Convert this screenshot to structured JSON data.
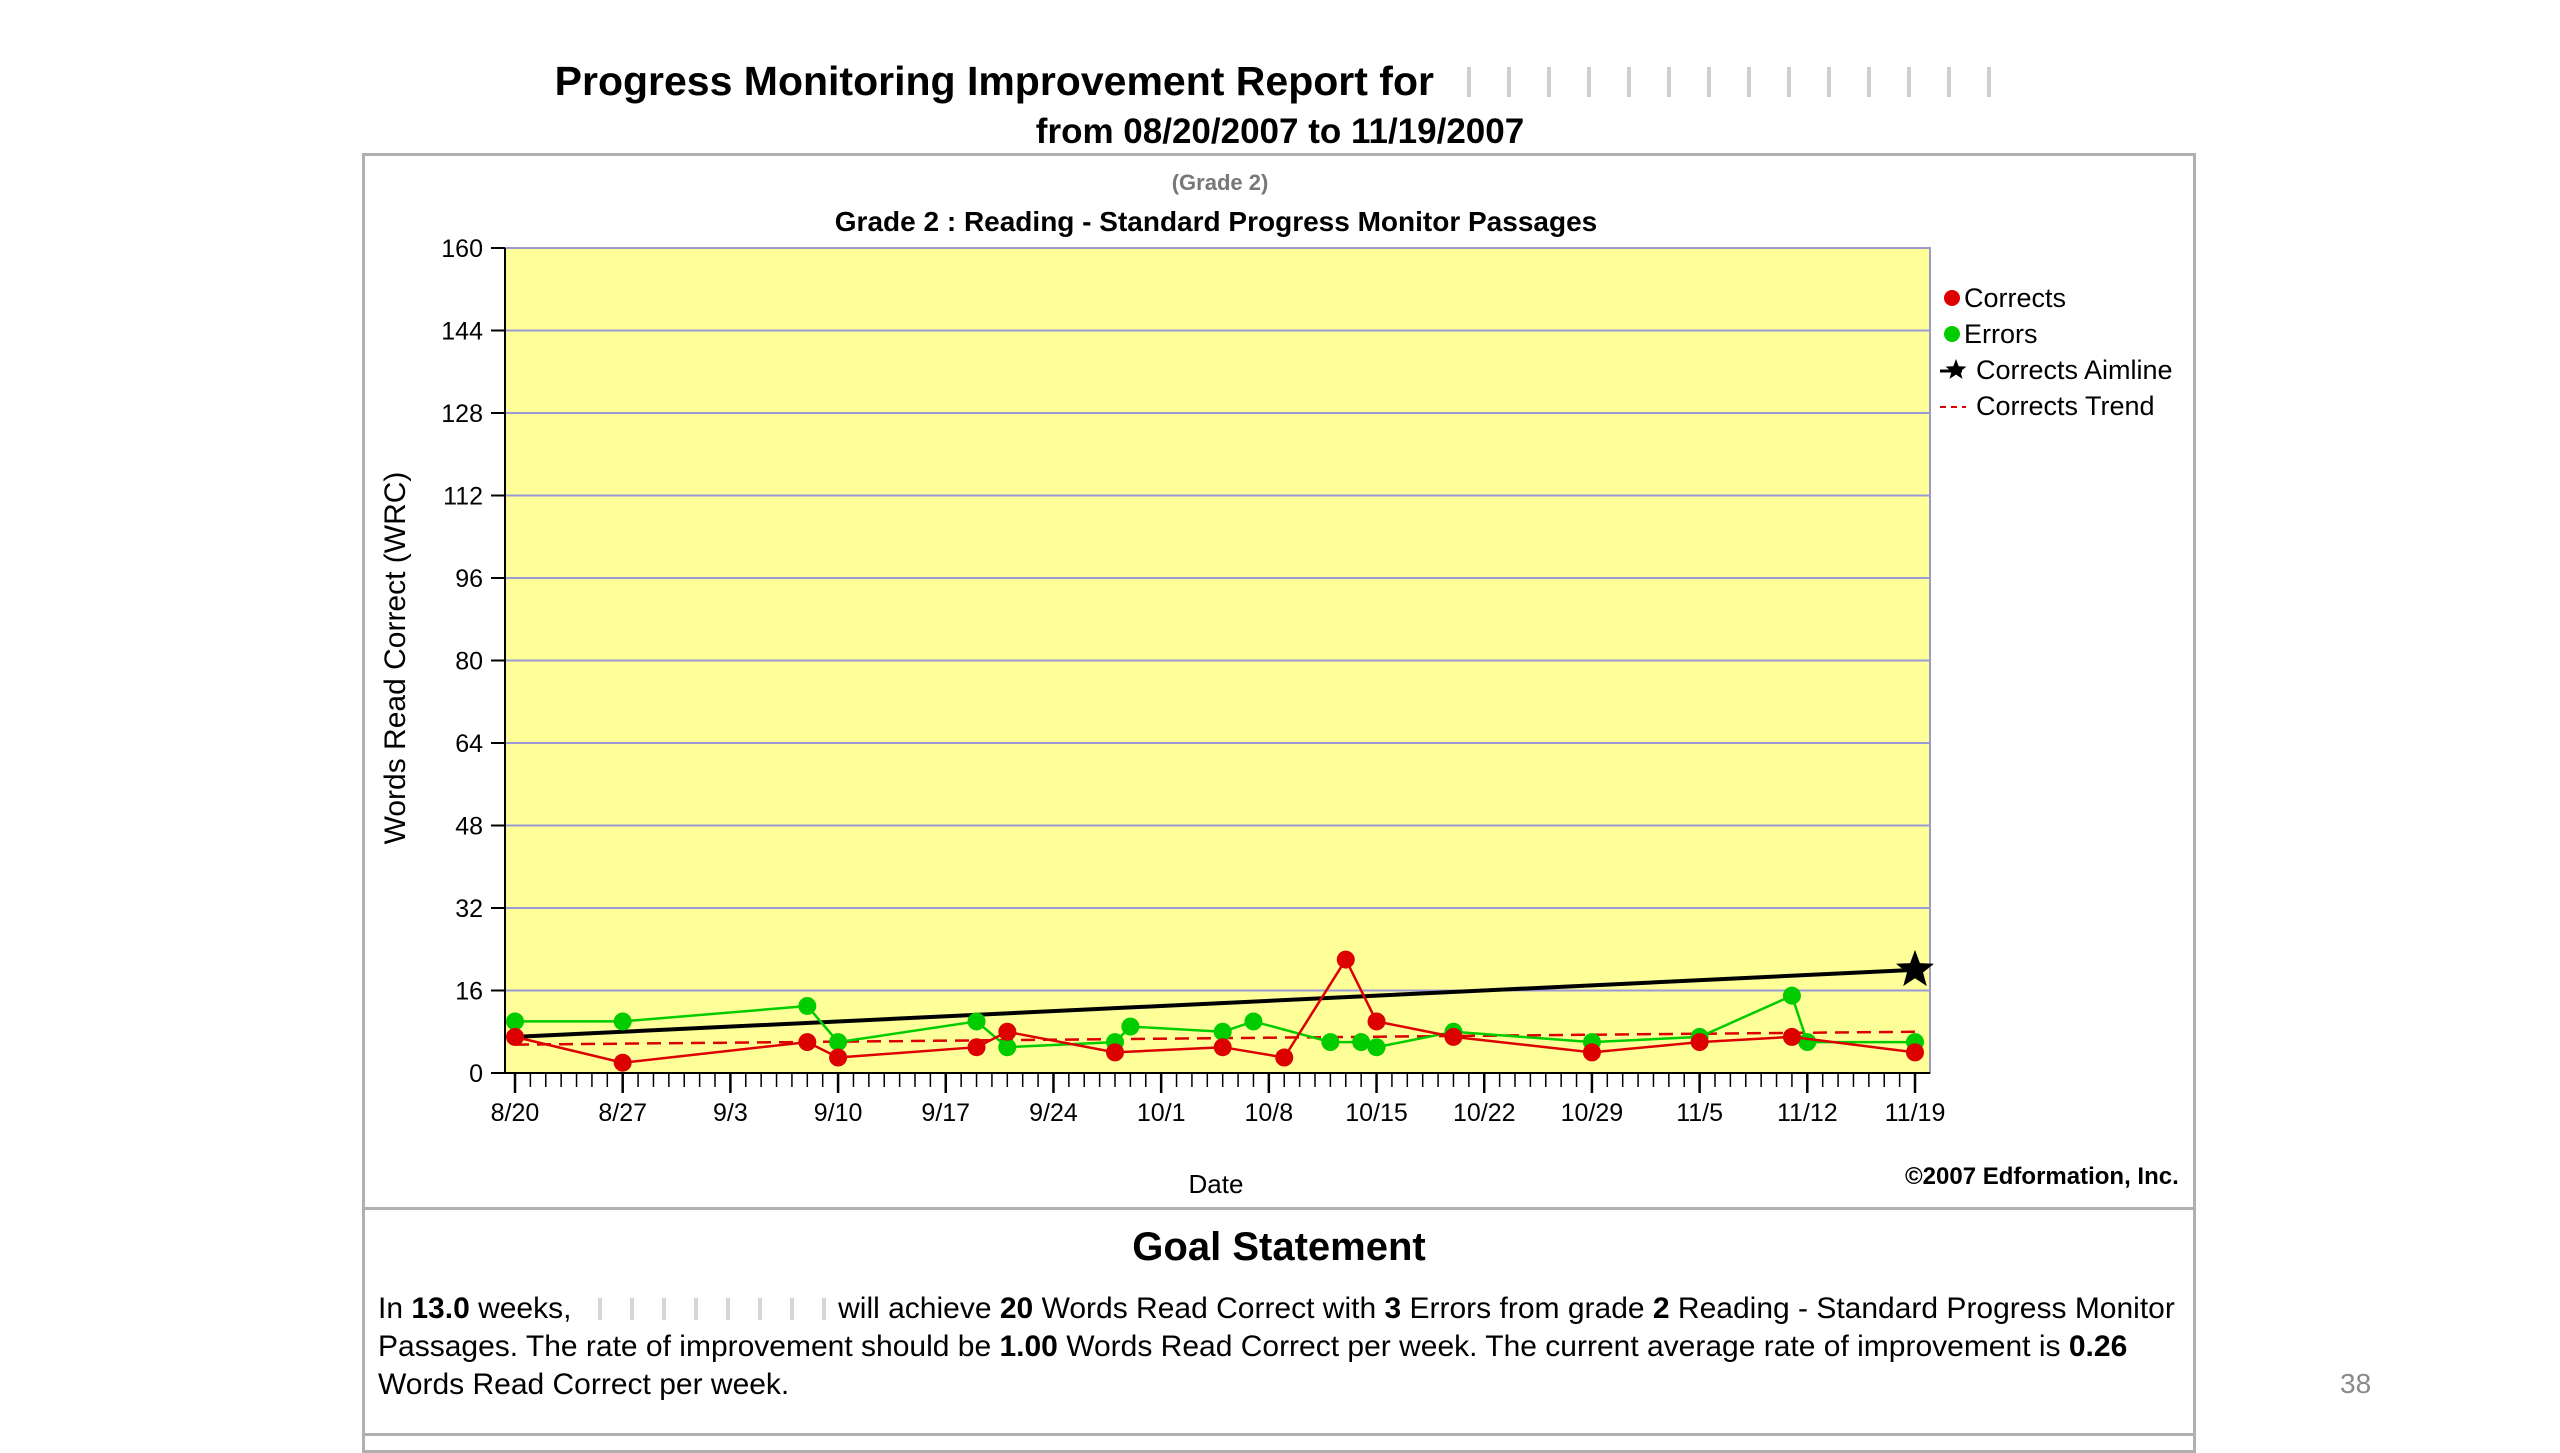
{
  "header": {
    "title": "Progress Monitoring Improvement Report for",
    "date_range": "from 08/20/2007 to 11/19/2007"
  },
  "chart_data": {
    "type": "line",
    "student_label": "(Grade 2)",
    "title": "Grade 2 : Reading - Standard Progress Monitor Passages",
    "xlabel": "Date",
    "ylabel": "Words Read Correct (WRC)",
    "ylim": [
      0,
      160
    ],
    "yticks": [
      0,
      16,
      32,
      48,
      64,
      80,
      96,
      112,
      128,
      144,
      160
    ],
    "xticks": [
      "8/20",
      "8/27",
      "9/3",
      "9/10",
      "9/17",
      "9/24",
      "10/1",
      "10/8",
      "10/15",
      "10/22",
      "10/29",
      "11/5",
      "11/12",
      "11/19"
    ],
    "grid": true,
    "legend_position": "right",
    "plot_background": "#ffff99",
    "series": [
      {
        "name": "Corrects",
        "color": "#dd0000",
        "x": [
          "8/20",
          "8/27",
          "9/8",
          "9/10",
          "9/19",
          "9/21",
          "9/28",
          "10/5",
          "10/9",
          "10/13",
          "10/15",
          "10/20",
          "10/29",
          "11/5",
          "11/11",
          "11/19"
        ],
        "values": [
          7,
          2,
          6,
          3,
          5,
          8,
          4,
          5,
          3,
          22,
          10,
          7,
          4,
          6,
          7,
          4
        ]
      },
      {
        "name": "Errors",
        "color": "#00cc00",
        "x": [
          "8/20",
          "8/27",
          "9/8",
          "9/10",
          "9/19",
          "9/21",
          "9/28",
          "9/29",
          "10/5",
          "10/7",
          "10/12",
          "10/14",
          "10/15",
          "10/20",
          "10/29",
          "11/5",
          "11/11",
          "11/12",
          "11/19"
        ],
        "values": [
          10,
          10,
          13,
          6,
          10,
          5,
          6,
          9,
          8,
          10,
          6,
          6,
          5,
          8,
          6,
          7,
          15,
          6,
          6
        ]
      },
      {
        "name": "Corrects Aimline",
        "color": "#000000",
        "x": [
          "8/20",
          "11/19"
        ],
        "values": [
          7,
          20
        ]
      },
      {
        "name": "Corrects Trend",
        "color": "#dd0000",
        "x": [
          "8/20",
          "11/19"
        ],
        "values": [
          5.5,
          8
        ]
      }
    ],
    "copyright": "©2007 Edformation, Inc."
  },
  "goal": {
    "heading": "Goal Statement",
    "line1_a": "In ",
    "weeks": "13.0",
    "line1_b": " weeks, ",
    "line1_c": " will achieve ",
    "target_wrc": "20",
    "line1_d": " Words Read Correct with ",
    "errors": "3",
    "line1_e": " Errors from grade ",
    "grade": "2",
    "line1_f": " Reading - Standard Progress Monitor Passages.  The rate of improvement should be ",
    "rate_goal": "1.00",
    "line1_g": " Words Read Correct per week. The current average rate of improvement is ",
    "rate_current": "0.26",
    "line1_h": " Words Read Correct per week."
  },
  "slide": {
    "number": "38"
  }
}
